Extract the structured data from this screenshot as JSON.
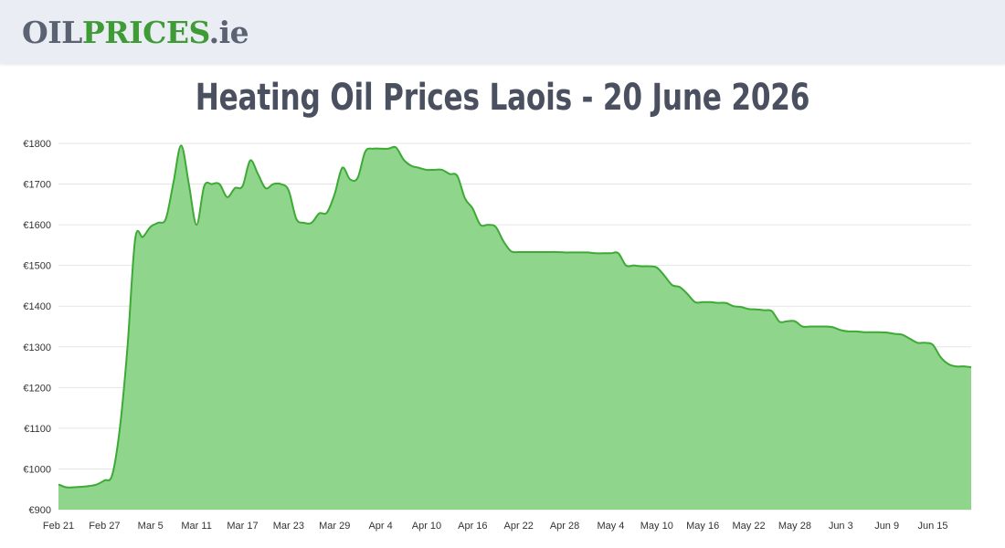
{
  "header": {
    "logo_oil": "OIL",
    "logo_prices": "PRICES",
    "logo_tld": ".ie"
  },
  "page_title": "Heating Oil Prices Laois - 20 June 2026",
  "colors": {
    "header_bg": "#ebedf4",
    "line": "#3daa35",
    "area_fill": "#90d58c",
    "grid": "#e6e6e6",
    "title": "#4a5060"
  },
  "chart_data": {
    "type": "area",
    "title": "Heating Oil Prices Laois - 20 June 2026",
    "xlabel": "",
    "ylabel": "",
    "ylim": [
      900,
      1800
    ],
    "yticks": [
      900,
      1000,
      1100,
      1200,
      1300,
      1400,
      1500,
      1600,
      1700,
      1800
    ],
    "ytick_prefix": "€",
    "grid": true,
    "legend": "none",
    "x_tick_labels": [
      "Feb 21",
      "Feb 27",
      "Mar 5",
      "Mar 11",
      "Mar 17",
      "Mar 23",
      "Mar 29",
      "Apr 4",
      "Apr 10",
      "Apr 16",
      "Apr 22",
      "Apr 28",
      "May 4",
      "May 10",
      "May 16",
      "May 22",
      "May 28",
      "Jun 3",
      "Jun 9",
      "Jun 15"
    ],
    "series": [
      {
        "x": [
          "Feb 21",
          "Feb 22",
          "Feb 23",
          "Feb 24",
          "Feb 25",
          "Feb 26",
          "Feb 27",
          "Feb 28",
          "Mar 1",
          "Mar 2",
          "Mar 3",
          "Mar 4",
          "Mar 5",
          "Mar 6",
          "Mar 7",
          "Mar 8",
          "Mar 9",
          "Mar 10",
          "Mar 11",
          "Mar 12",
          "Mar 13",
          "Mar 14",
          "Mar 15",
          "Mar 16",
          "Mar 17",
          "Mar 18",
          "Mar 19",
          "Mar 20",
          "Mar 21",
          "Mar 22",
          "Mar 23",
          "Mar 24",
          "Mar 25",
          "Mar 26",
          "Mar 27",
          "Mar 28",
          "Mar 29",
          "Mar 30",
          "Mar 31",
          "Apr 1",
          "Apr 2",
          "Apr 3",
          "Apr 4",
          "Apr 5",
          "Apr 6",
          "Apr 7",
          "Apr 8",
          "Apr 9",
          "Apr 10",
          "Apr 11",
          "Apr 12",
          "Apr 13",
          "Apr 14",
          "Apr 15",
          "Apr 16",
          "Apr 17",
          "Apr 18",
          "Apr 19",
          "Apr 20",
          "Apr 21",
          "Apr 22",
          "Apr 23",
          "Apr 24",
          "Apr 25",
          "Apr 26",
          "Apr 27",
          "Apr 28",
          "Apr 29",
          "Apr 30",
          "May 1",
          "May 2",
          "May 3",
          "May 4",
          "May 5",
          "May 6",
          "May 7",
          "May 8",
          "May 9",
          "May 10",
          "May 11",
          "May 12",
          "May 13",
          "May 14",
          "May 15",
          "May 16",
          "May 17",
          "May 18",
          "May 19",
          "May 20",
          "May 21",
          "May 22",
          "May 23",
          "May 24",
          "May 25",
          "May 26",
          "May 27",
          "May 28",
          "May 29",
          "May 30",
          "May 31",
          "Jun 1",
          "Jun 2",
          "Jun 3",
          "Jun 4",
          "Jun 5",
          "Jun 6",
          "Jun 7",
          "Jun 8",
          "Jun 9",
          "Jun 10",
          "Jun 11",
          "Jun 12",
          "Jun 13",
          "Jun 14",
          "Jun 15",
          "Jun 16",
          "Jun 17",
          "Jun 18",
          "Jun 19",
          "Jun 20"
        ],
        "y": [
          962,
          955,
          955,
          956,
          958,
          962,
          972,
          985,
          1100,
          1300,
          1565,
          1570,
          1595,
          1605,
          1615,
          1705,
          1795,
          1700,
          1600,
          1695,
          1700,
          1700,
          1668,
          1690,
          1695,
          1758,
          1725,
          1690,
          1700,
          1700,
          1685,
          1615,
          1605,
          1605,
          1628,
          1630,
          1675,
          1740,
          1712,
          1715,
          1780,
          1787,
          1787,
          1787,
          1790,
          1760,
          1745,
          1740,
          1735,
          1735,
          1735,
          1725,
          1720,
          1665,
          1640,
          1600,
          1600,
          1595,
          1560,
          1535,
          1533,
          1533,
          1533,
          1533,
          1533,
          1533,
          1532,
          1532,
          1532,
          1532,
          1530,
          1530,
          1530,
          1530,
          1500,
          1500,
          1498,
          1498,
          1495,
          1475,
          1452,
          1447,
          1430,
          1410,
          1410,
          1410,
          1408,
          1408,
          1400,
          1398,
          1393,
          1392,
          1390,
          1388,
          1362,
          1363,
          1363,
          1350,
          1350,
          1350,
          1350,
          1348,
          1341,
          1338,
          1338,
          1336,
          1336,
          1336,
          1335,
          1332,
          1330,
          1320,
          1310,
          1310,
          1305,
          1275,
          1258,
          1252,
          1252,
          1250
        ]
      }
    ]
  }
}
